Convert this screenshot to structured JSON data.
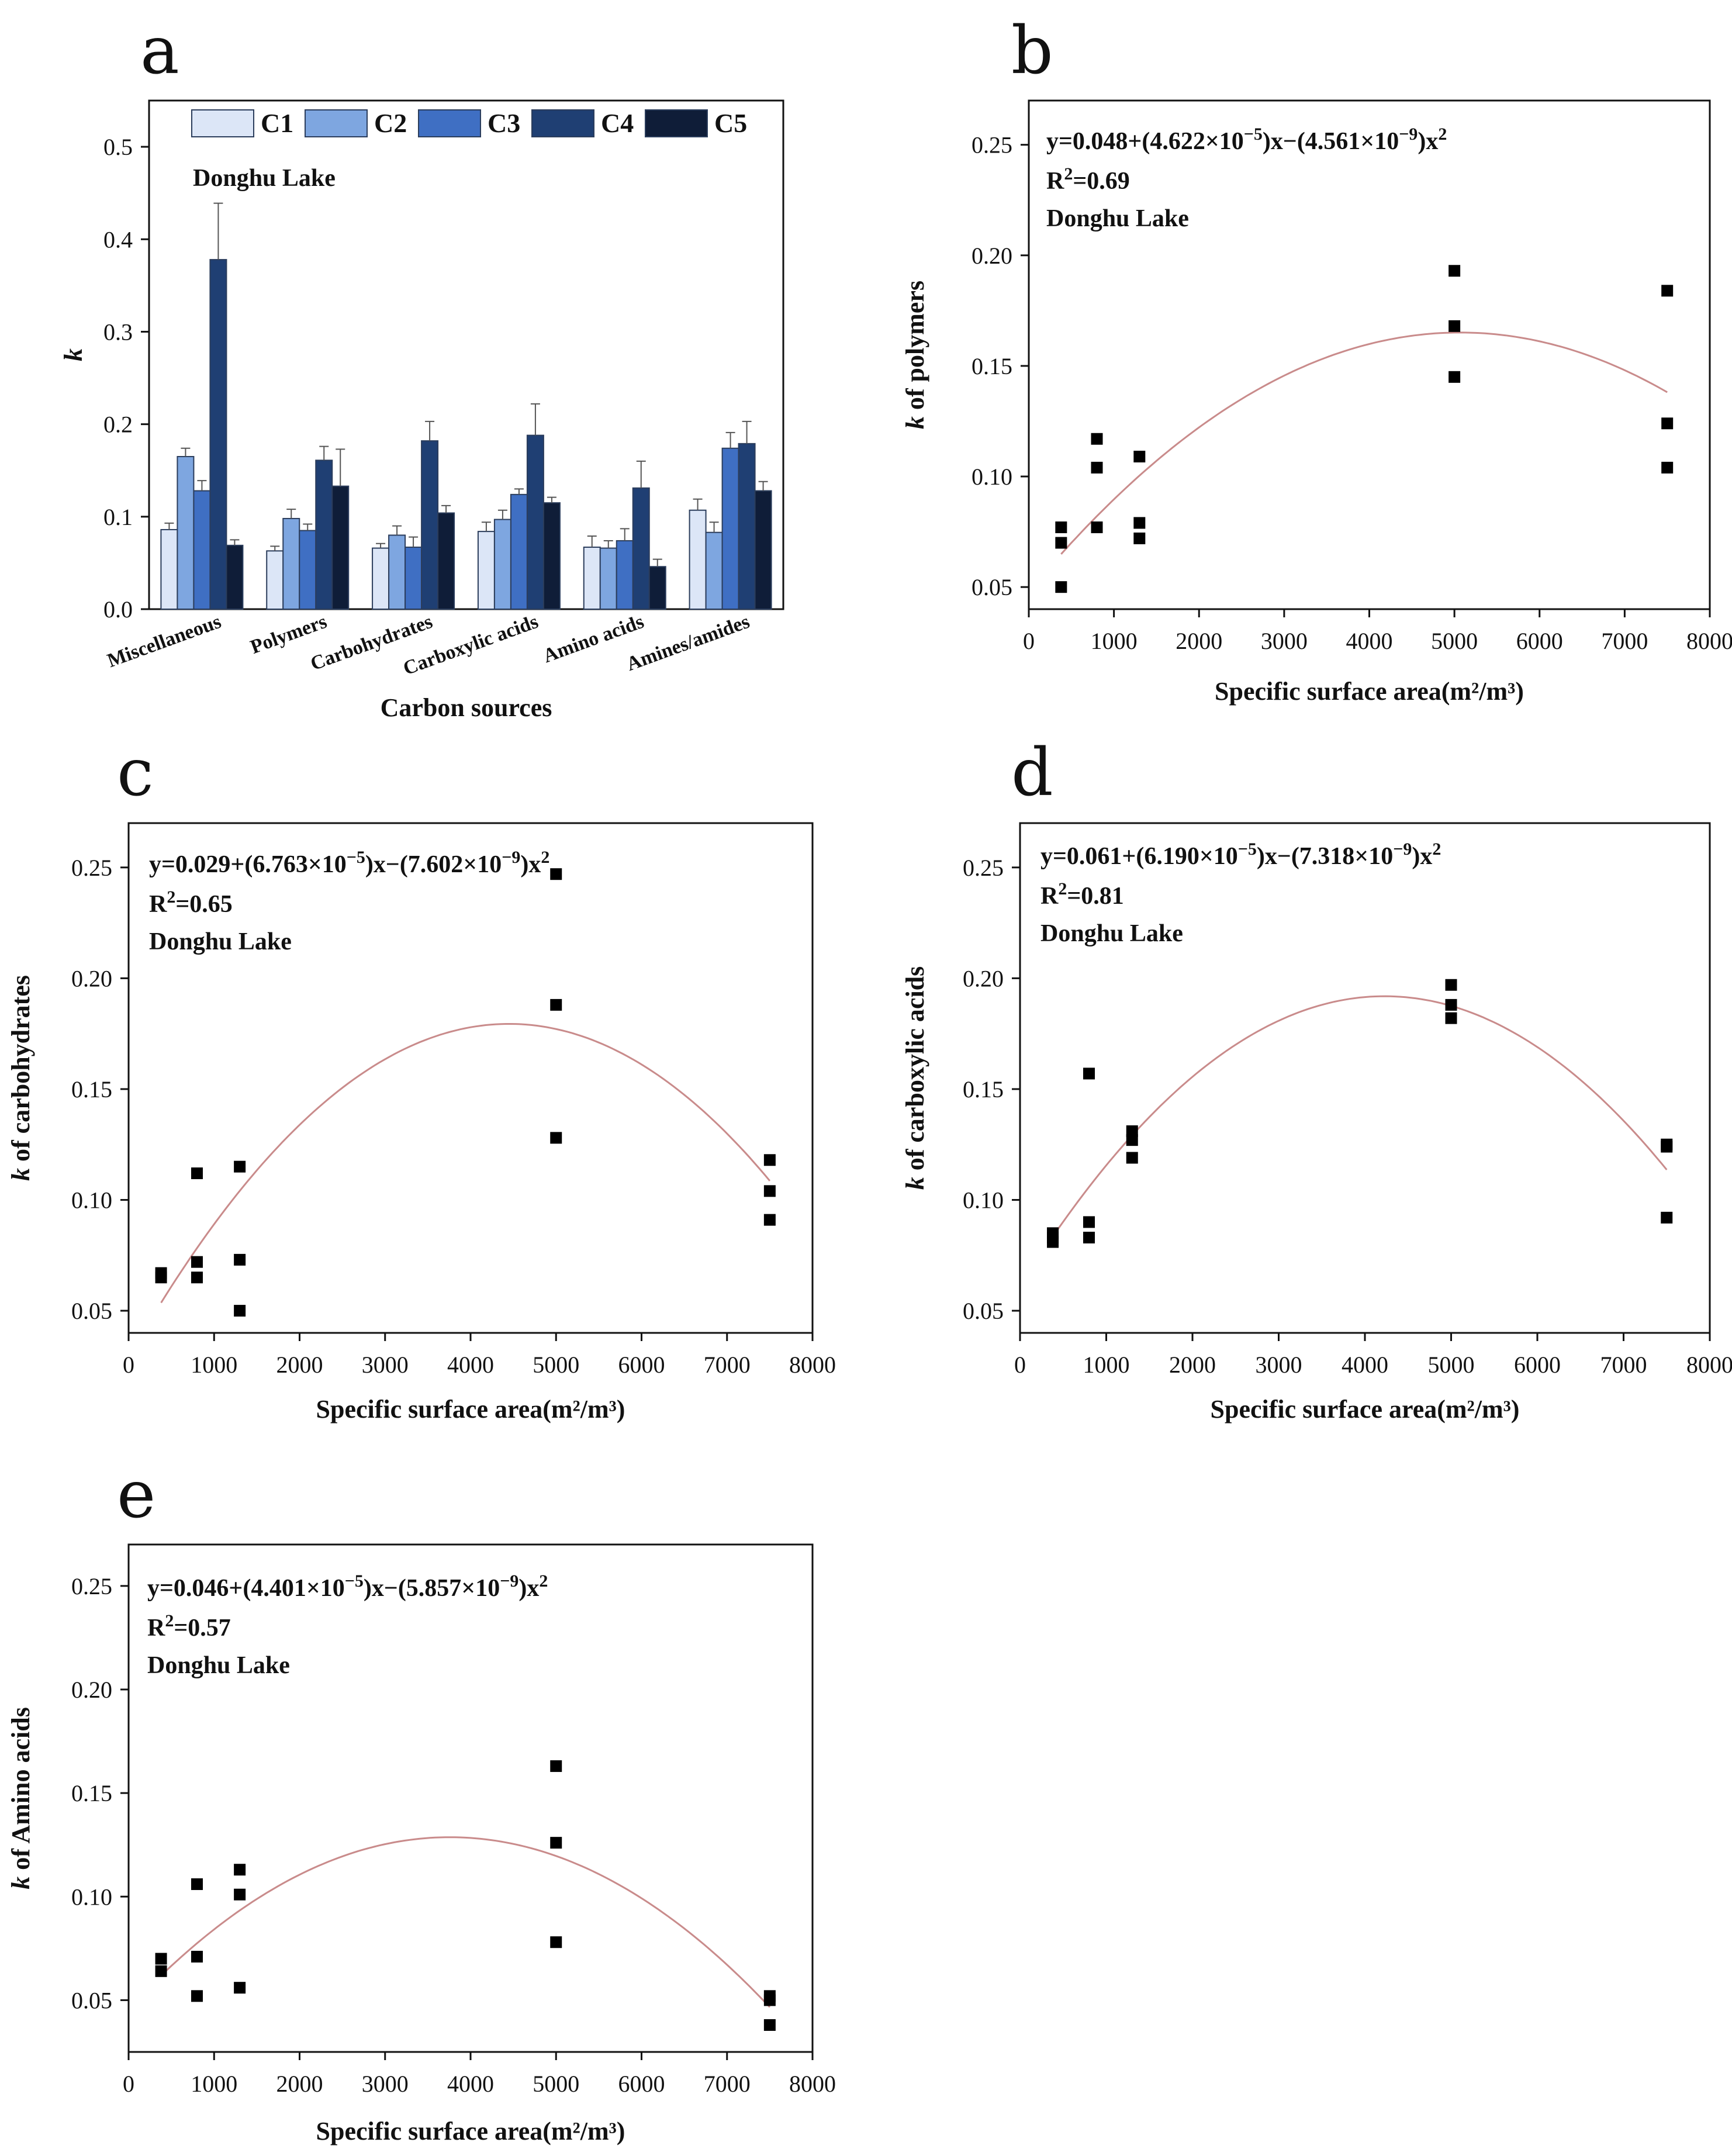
{
  "figure": {
    "font_note": ""
  },
  "chart_data": [
    {
      "panel": "a",
      "type": "bar",
      "annotation": "Donghu Lake",
      "xlabel": "Carbon sources",
      "ylabel": "k",
      "ylim": [
        0,
        0.55
      ],
      "yticks": [
        "0.0",
        "0.1",
        "0.2",
        "0.3",
        "0.4",
        "0.5"
      ],
      "ytick_values": [
        0,
        0.1,
        0.2,
        0.3,
        0.4,
        0.5
      ],
      "categories": [
        "Miscellaneous",
        "Polymers",
        "Carbohydrates",
        "Carboxylic acids",
        "Amino acids",
        "Amines/amides"
      ],
      "series": [
        {
          "name": "C1",
          "color": "#dce6f7",
          "values": [
            0.086,
            0.063,
            0.066,
            0.084,
            0.067,
            0.107
          ],
          "errors": [
            0.007,
            0.005,
            0.005,
            0.01,
            0.012,
            0.012
          ]
        },
        {
          "name": "C2",
          "color": "#7ea6e0",
          "values": [
            0.165,
            0.098,
            0.08,
            0.097,
            0.066,
            0.083
          ],
          "errors": [
            0.009,
            0.01,
            0.01,
            0.01,
            0.008,
            0.011
          ]
        },
        {
          "name": "C3",
          "color": "#3f6fc3",
          "values": [
            0.128,
            0.085,
            0.067,
            0.124,
            0.074,
            0.174
          ],
          "errors": [
            0.011,
            0.007,
            0.011,
            0.006,
            0.013,
            0.017
          ]
        },
        {
          "name": "C4",
          "color": "#1f3f73",
          "values": [
            0.378,
            0.161,
            0.182,
            0.188,
            0.131,
            0.179
          ],
          "errors": [
            0.061,
            0.015,
            0.021,
            0.034,
            0.029,
            0.024
          ]
        },
        {
          "name": "C5",
          "color": "#0f1d38",
          "values": [
            0.069,
            0.133,
            0.104,
            0.115,
            0.046,
            0.128
          ],
          "errors": [
            0.006,
            0.04,
            0.008,
            0.006,
            0.008,
            0.01
          ]
        }
      ]
    },
    {
      "panel": "b",
      "type": "scatter",
      "equation": {
        "prefix": "y=0.048+(4.622×10",
        "exp1": "−5",
        "mid": ")x−(4.561×10",
        "exp2": "−9",
        "tail": ")x",
        "sq": "2"
      },
      "r2": {
        "base": "R",
        "sup": "2",
        "rest": "=0.69"
      },
      "annotation": "Donghu Lake",
      "xlabel": "Specific surface area(m²/m³)",
      "ylabel": "k of polymers",
      "ylabel_k": "k",
      "ylabel_rest": " of polymers",
      "xlim": [
        0,
        8000
      ],
      "ylim": [
        0.04,
        0.27
      ],
      "xticks": [
        "0",
        "1000",
        "2000",
        "3000",
        "4000",
        "5000",
        "6000",
        "7000",
        "8000"
      ],
      "xtick_values": [
        0,
        1000,
        2000,
        3000,
        4000,
        5000,
        6000,
        7000,
        8000
      ],
      "yticks": [
        "0.05",
        "0.10",
        "0.15",
        "0.20",
        "0.25"
      ],
      "ytick_values": [
        0.05,
        0.1,
        0.15,
        0.2,
        0.25
      ],
      "fit": {
        "a": 0.048,
        "b": 4.622e-05,
        "c": -4.561e-09,
        "x_range": [
          380,
          7500
        ],
        "color": "#c98b8b"
      },
      "points": [
        [
          380,
          0.05
        ],
        [
          380,
          0.07
        ],
        [
          380,
          0.077
        ],
        [
          800,
          0.077
        ],
        [
          800,
          0.104
        ],
        [
          800,
          0.117
        ],
        [
          1300,
          0.072
        ],
        [
          1300,
          0.079
        ],
        [
          1300,
          0.109
        ],
        [
          5000,
          0.145
        ],
        [
          5000,
          0.168
        ],
        [
          5000,
          0.193
        ],
        [
          7500,
          0.104
        ],
        [
          7500,
          0.124
        ],
        [
          7500,
          0.184
        ]
      ]
    },
    {
      "panel": "c",
      "type": "scatter",
      "equation": {
        "prefix": "y=0.029+(6.763×10",
        "exp1": "−5",
        "mid": ")x−(7.602×10",
        "exp2": "−9",
        "tail": ")x",
        "sq": "2"
      },
      "r2": {
        "base": "R",
        "sup": "2",
        "rest": "=0.65"
      },
      "annotation": "Donghu Lake",
      "xlabel": "Specific surface area(m²/m³)",
      "ylabel": "k of carbohydrates",
      "ylabel_k": "k",
      "ylabel_rest": " of carbohydrates",
      "xlim": [
        0,
        8000
      ],
      "ylim": [
        0.04,
        0.27
      ],
      "xticks": [
        "0",
        "1000",
        "2000",
        "3000",
        "4000",
        "5000",
        "6000",
        "7000",
        "8000"
      ],
      "xtick_values": [
        0,
        1000,
        2000,
        3000,
        4000,
        5000,
        6000,
        7000,
        8000
      ],
      "yticks": [
        "0.05",
        "0.10",
        "0.15",
        "0.20",
        "0.25"
      ],
      "ytick_values": [
        0.05,
        0.1,
        0.15,
        0.2,
        0.25
      ],
      "fit": {
        "a": 0.029,
        "b": 6.763e-05,
        "c": -7.602e-09,
        "x_range": [
          380,
          7500
        ],
        "color": "#c98b8b"
      },
      "points": [
        [
          380,
          0.065
        ],
        [
          380,
          0.067
        ],
        [
          800,
          0.065
        ],
        [
          800,
          0.072
        ],
        [
          800,
          0.112
        ],
        [
          1300,
          0.05
        ],
        [
          1300,
          0.073
        ],
        [
          1300,
          0.115
        ],
        [
          5000,
          0.128
        ],
        [
          5000,
          0.188
        ],
        [
          5000,
          0.247
        ],
        [
          7500,
          0.091
        ],
        [
          7500,
          0.104
        ],
        [
          7500,
          0.118
        ]
      ]
    },
    {
      "panel": "d",
      "type": "scatter",
      "equation": {
        "prefix": "y=0.061+(6.190×10",
        "exp1": "−5",
        "mid": ")x−(7.318×10",
        "exp2": "−9",
        "tail": ")x",
        "sq": "2"
      },
      "r2": {
        "base": "R",
        "sup": "2",
        "rest": "=0.81"
      },
      "annotation": "Donghu Lake",
      "xlabel": "Specific surface area(m²/m³)",
      "ylabel": "k of carboxylic acids",
      "ylabel_k": "k",
      "ylabel_rest": " of carboxylic acids",
      "xlim": [
        0,
        8000
      ],
      "ylim": [
        0.04,
        0.27
      ],
      "xticks": [
        "0",
        "1000",
        "2000",
        "3000",
        "4000",
        "5000",
        "6000",
        "7000",
        "8000"
      ],
      "xtick_values": [
        0,
        1000,
        2000,
        3000,
        4000,
        5000,
        6000,
        7000,
        8000
      ],
      "yticks": [
        "0.05",
        "0.10",
        "0.15",
        "0.20",
        "0.25"
      ],
      "ytick_values": [
        0.05,
        0.1,
        0.15,
        0.2,
        0.25
      ],
      "fit": {
        "a": 0.061,
        "b": 6.19e-05,
        "c": -7.318e-09,
        "x_range": [
          380,
          7500
        ],
        "color": "#c98b8b"
      },
      "points": [
        [
          380,
          0.081
        ],
        [
          380,
          0.083
        ],
        [
          380,
          0.085
        ],
        [
          800,
          0.083
        ],
        [
          800,
          0.09
        ],
        [
          800,
          0.157
        ],
        [
          1300,
          0.119
        ],
        [
          1300,
          0.127
        ],
        [
          1300,
          0.131
        ],
        [
          5000,
          0.182
        ],
        [
          5000,
          0.188
        ],
        [
          5000,
          0.197
        ],
        [
          7500,
          0.092
        ],
        [
          7500,
          0.124
        ],
        [
          7500,
          0.125
        ]
      ]
    },
    {
      "panel": "e",
      "type": "scatter",
      "equation": {
        "prefix": "y=0.046+(4.401×10",
        "exp1": "−5",
        "mid": ")x−(5.857×10",
        "exp2": "−9",
        "tail": ")x",
        "sq": "2"
      },
      "r2": {
        "base": "R",
        "sup": "2",
        "rest": "=0.57"
      },
      "annotation": "Donghu Lake",
      "xlabel": "Specific surface area(m²/m³)",
      "ylabel": "k of Amino acids",
      "ylabel_k": "k",
      "ylabel_rest": " of Amino acids",
      "xlim": [
        0,
        8000
      ],
      "ylim": [
        0.025,
        0.27
      ],
      "xticks": [
        "0",
        "1000",
        "2000",
        "3000",
        "4000",
        "5000",
        "6000",
        "7000",
        "8000"
      ],
      "xtick_values": [
        0,
        1000,
        2000,
        3000,
        4000,
        5000,
        6000,
        7000,
        8000
      ],
      "yticks": [
        "0.05",
        "0.10",
        "0.15",
        "0.20",
        "0.25"
      ],
      "ytick_values": [
        0.05,
        0.1,
        0.15,
        0.2,
        0.25
      ],
      "fit": {
        "a": 0.046,
        "b": 4.401e-05,
        "c": -5.857e-09,
        "x_range": [
          380,
          7500
        ],
        "color": "#c98b8b"
      },
      "points": [
        [
          380,
          0.064
        ],
        [
          380,
          0.07
        ],
        [
          800,
          0.052
        ],
        [
          800,
          0.071
        ],
        [
          800,
          0.106
        ],
        [
          1300,
          0.056
        ],
        [
          1300,
          0.101
        ],
        [
          1300,
          0.113
        ],
        [
          5000,
          0.078
        ],
        [
          5000,
          0.126
        ],
        [
          5000,
          0.163
        ],
        [
          7500,
          0.038
        ],
        [
          7500,
          0.05
        ],
        [
          7500,
          0.052
        ]
      ]
    }
  ]
}
